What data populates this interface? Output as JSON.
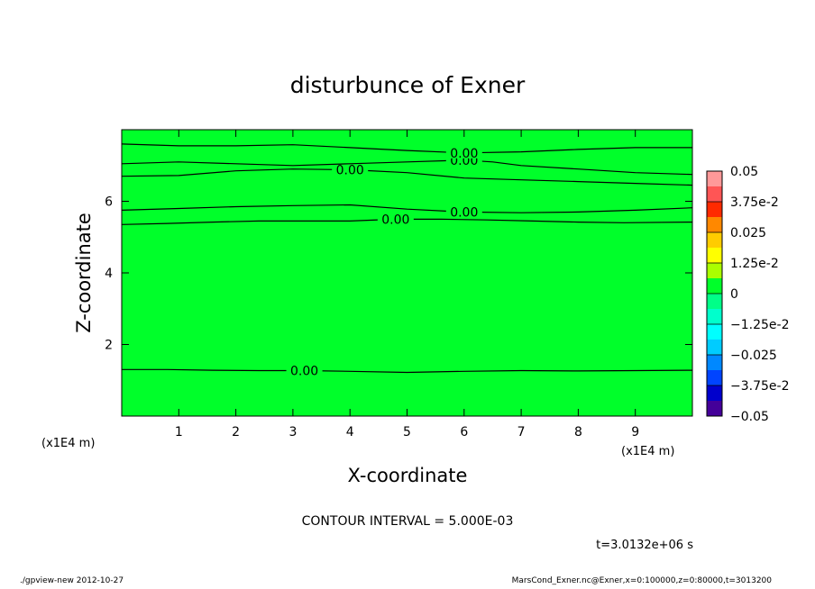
{
  "chart_data": {
    "type": "contour",
    "title": "disturbunce of Exner",
    "xlabel": "X-coordinate",
    "ylabel": "Z-coordinate",
    "x_unit": "(x1E4 m)",
    "y_unit": "(x1E4 m)",
    "xlim": [
      0,
      10
    ],
    "ylim": [
      0,
      8
    ],
    "x_ticks": [
      1,
      2,
      3,
      4,
      5,
      6,
      7,
      8,
      9
    ],
    "y_ticks": [
      2,
      4,
      6
    ],
    "contour_interval_text": "CONTOUR INTERVAL = 5.000E-03",
    "time_text": "t=3.0132e+06 s",
    "background_color": "#00ff2a",
    "contours": [
      {
        "label": "0.00",
        "x": [
          0,
          0.8,
          1.6,
          2.4,
          2.8,
          3.2,
          4.0,
          5.0,
          6.0,
          7.0,
          8.0,
          9.0,
          10
        ],
        "y": [
          1.3,
          1.3,
          1.28,
          1.27,
          1.27,
          1.27,
          1.25,
          1.22,
          1.25,
          1.27,
          1.26,
          1.27,
          1.28
        ]
      },
      {
        "label": "0.00",
        "x": [
          0,
          0.8,
          1.6,
          2.4,
          3.2,
          4.0,
          4.8,
          5.6,
          6.4,
          7.2,
          8.0,
          8.8,
          10
        ],
        "y": [
          5.35,
          5.38,
          5.42,
          5.45,
          5.45,
          5.45,
          5.5,
          5.5,
          5.48,
          5.45,
          5.42,
          5.4,
          5.42
        ]
      },
      {
        "label": "0.00",
        "x": [
          0,
          1.0,
          2.0,
          3.0,
          4.0,
          5.0,
          6.0,
          7.0,
          8.0,
          9.0,
          10
        ],
        "y": [
          5.75,
          5.8,
          5.85,
          5.88,
          5.9,
          5.78,
          5.7,
          5.68,
          5.7,
          5.75,
          5.82
        ]
      },
      {
        "label": "0.00",
        "x": [
          0,
          1.0,
          2.0,
          3.0,
          4.0,
          5.0,
          6.0,
          7.0,
          8.0,
          9.0,
          10
        ],
        "y": [
          6.7,
          6.72,
          6.85,
          6.9,
          6.88,
          6.8,
          6.65,
          6.6,
          6.55,
          6.5,
          6.45
        ]
      },
      {
        "label": "0.00",
        "x": [
          0,
          1.0,
          2.0,
          3.0,
          4.0,
          5.0,
          6.0,
          6.5,
          7.0,
          8.0,
          9.0,
          10
        ],
        "y": [
          7.05,
          7.1,
          7.05,
          7.0,
          7.05,
          7.1,
          7.15,
          7.1,
          7.0,
          6.9,
          6.8,
          6.75
        ]
      },
      {
        "label": "0.00",
        "x": [
          0,
          1.0,
          2.0,
          3.0,
          4.0,
          5.0,
          6.0,
          7.0,
          8.0,
          9.0,
          10
        ],
        "y": [
          7.6,
          7.55,
          7.55,
          7.58,
          7.5,
          7.42,
          7.35,
          7.38,
          7.45,
          7.5,
          7.5
        ]
      }
    ],
    "colorbar": {
      "labels": [
        "0.05",
        "3.75e-2",
        "0.025",
        "1.25e-2",
        "0",
        "−1.25e-2",
        "−0.025",
        "−3.75e-2",
        "−0.05"
      ],
      "colors": [
        "#ff9999",
        "#ff5555",
        "#ff2a00",
        "#ff8800",
        "#ffcc00",
        "#ffff00",
        "#aaff00",
        "#00ff2a",
        "#00ff88",
        "#00ffcc",
        "#00ffff",
        "#00ccff",
        "#0088ff",
        "#0044ff",
        "#0000cc",
        "#440099"
      ]
    }
  },
  "footer": {
    "left": "./gpview-new  2012-10-27",
    "right": "MarsCond_Exner.nc@Exner,x=0:100000,z=0:80000,t=3013200"
  }
}
